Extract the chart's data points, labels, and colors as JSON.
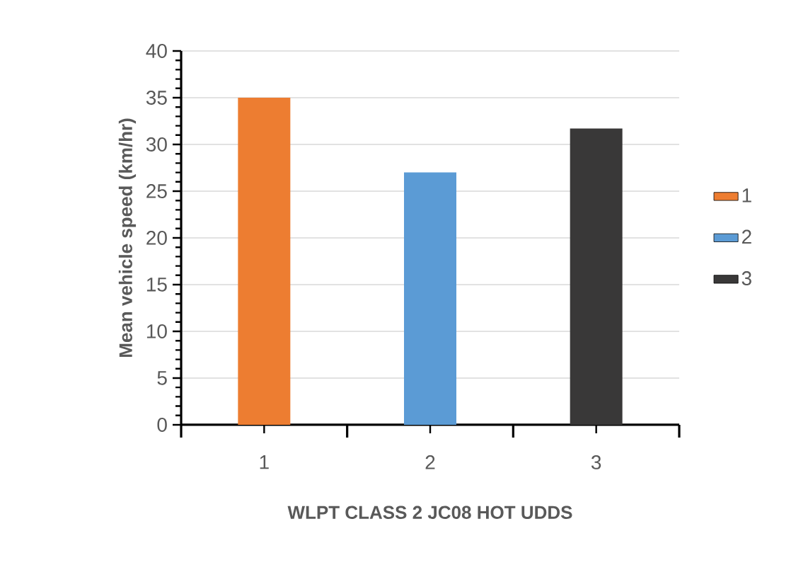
{
  "chart_data": {
    "type": "bar",
    "ylabel": "Mean vehicle speed (km/hr)",
    "xlabel": "WLPT CLASS 2   JC08 HOT   UDDS",
    "categories": [
      "1",
      "2",
      "3"
    ],
    "series": [
      {
        "name": "1",
        "color": "#ed7d31",
        "values": [
          35,
          null,
          null
        ]
      },
      {
        "name": "2",
        "color": "#5b9bd5",
        "values": [
          null,
          27.0,
          null
        ]
      },
      {
        "name": "3",
        "color": "#393838",
        "values": [
          null,
          null,
          31.7
        ]
      }
    ],
    "ylim": [
      0,
      40
    ],
    "yticks": [
      0,
      5,
      10,
      15,
      20,
      25,
      30,
      35,
      40
    ],
    "grid": "y",
    "legend": "right"
  }
}
